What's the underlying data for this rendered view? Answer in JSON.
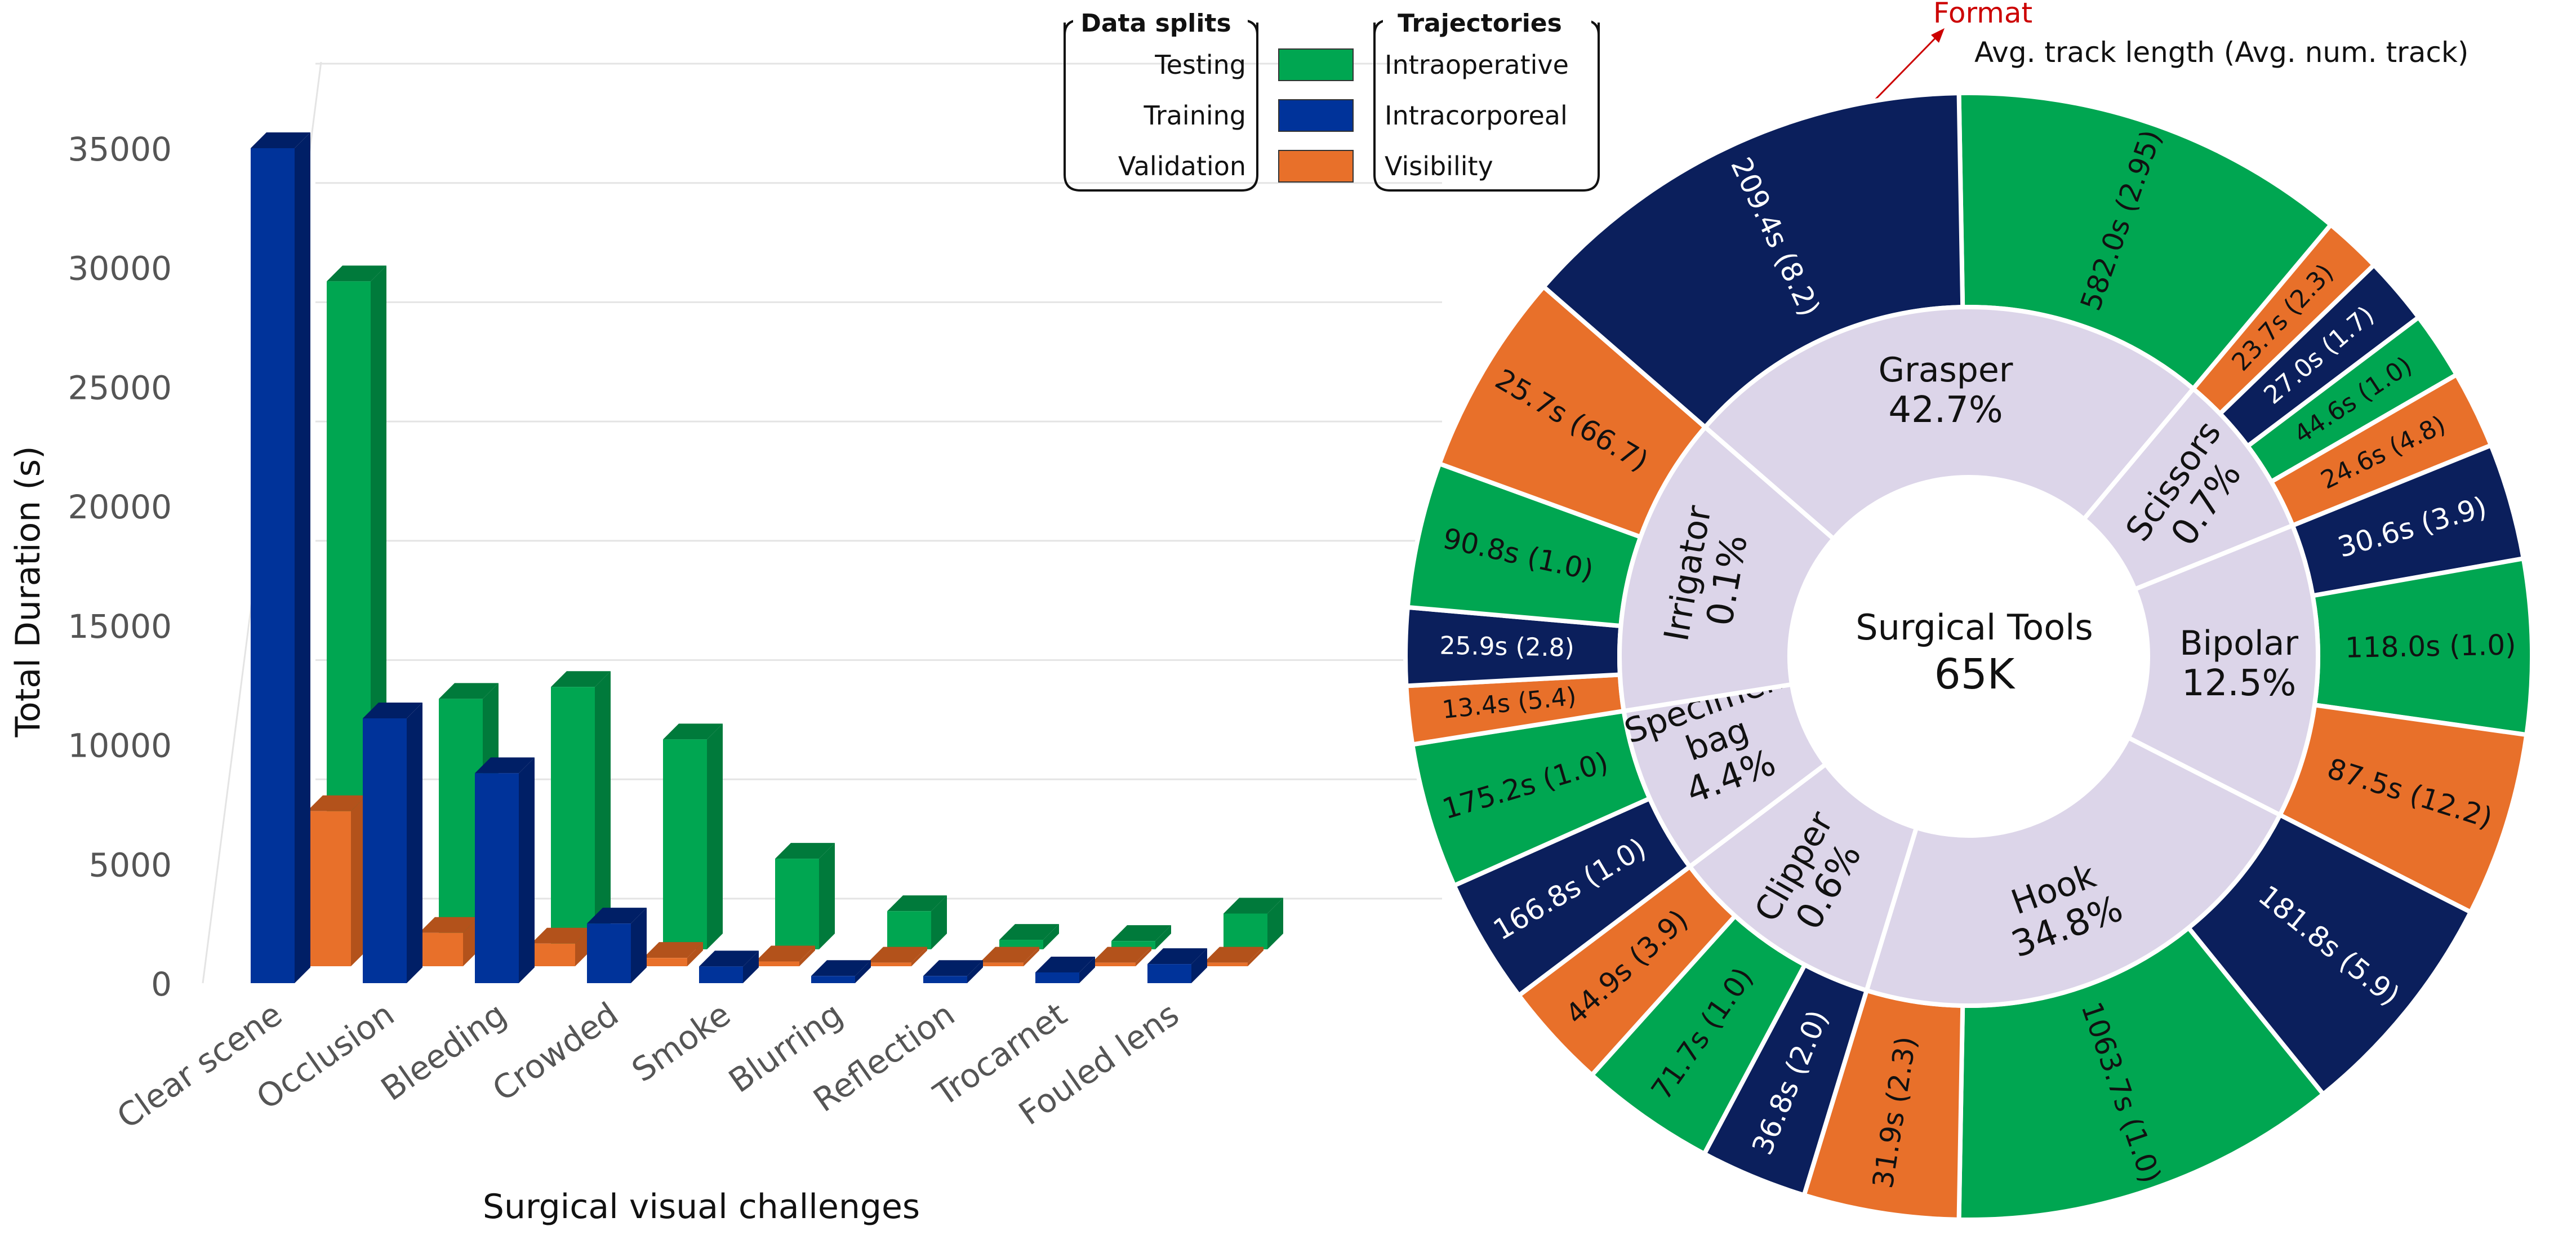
{
  "colors": {
    "testing": "#00a651",
    "testing_side": "#007a3b",
    "training": "#00339a",
    "training_side": "#001f66",
    "validation": "#e8702a",
    "validation_side": "#b3521b",
    "inner_ring": "#dcd5e9",
    "outer_train": "#0b1f5c",
    "annot": "#cc0000",
    "grid": "#e4e4e4"
  },
  "legend": {
    "data_splits_title": "Data splits",
    "trajectories_title": "Trajectories",
    "rows": [
      {
        "split": "Testing",
        "trajectory": "Intraoperative",
        "color": "#00a651"
      },
      {
        "split": "Training",
        "trajectory": "Intracorporeal",
        "color": "#00339a"
      },
      {
        "split": "Validation",
        "trajectory": "Visibility",
        "color": "#e8702a"
      }
    ]
  },
  "annotation": {
    "format_label": "Format",
    "format_text": "Avg. track length (Avg. num. track)"
  },
  "chart_data": [
    {
      "type": "bar",
      "title": "",
      "xlabel": "Surgical visual challenges",
      "ylabel": "Total Duration (s)",
      "ylim": [
        0,
        35000
      ],
      "yticks": [
        "0",
        "5000",
        "10000",
        "15000",
        "20000",
        "25000",
        "30000",
        "35000"
      ],
      "grid": true,
      "categories": [
        "Clear scene",
        "Occlusion",
        "Bleeding",
        "Crowded",
        "Smoke",
        "Blurring",
        "Reflection",
        "Trocarnet",
        "Fouled lens"
      ],
      "series": [
        {
          "name": "Training",
          "values": [
            35000,
            11100,
            8800,
            2500,
            700,
            300,
            300,
            450,
            800
          ]
        },
        {
          "name": "Validation",
          "values": [
            6500,
            1400,
            950,
            350,
            200,
            150,
            150,
            150,
            150
          ]
        },
        {
          "name": "Testing",
          "values": [
            28000,
            10500,
            11000,
            8800,
            3800,
            1600,
            400,
            350,
            1500
          ]
        }
      ]
    },
    {
      "type": "pie",
      "center_label": "Surgical Tools",
      "center_value": "65K",
      "tools": [
        {
          "name": "Grasper",
          "percent": "42.7%"
        },
        {
          "name": "Scissors",
          "percent": "0.7%"
        },
        {
          "name": "Bipolar",
          "percent": "12.5%"
        },
        {
          "name": "Hook",
          "percent": "34.8%"
        },
        {
          "name": "Clipper",
          "percent": "0.6%"
        },
        {
          "name": "Specimen bag",
          "percent": "4.4%"
        },
        {
          "name": "Irrigator",
          "percent": "0.1%"
        }
      ],
      "outer": [
        {
          "label": "582.0s (2.95)",
          "split": "Testing"
        },
        {
          "label": "23.7s (2.3)",
          "split": "Validation"
        },
        {
          "label": "27.0s (1.7)",
          "split": "Training"
        },
        {
          "label": "44.6s (1.0)",
          "split": "Testing"
        },
        {
          "label": "24.6s (4.8)",
          "split": "Validation"
        },
        {
          "label": "30.6s (3.9)",
          "split": "Training"
        },
        {
          "label": "118.0s (1.0)",
          "split": "Testing"
        },
        {
          "label": "87.5s (12.2)",
          "split": "Validation"
        },
        {
          "label": "181.8s (5.9)",
          "split": "Training"
        },
        {
          "label": "1063.7s (1.0)",
          "split": "Testing"
        },
        {
          "label": "31.9s (2.3)",
          "split": "Validation"
        },
        {
          "label": "36.8s (2.0)",
          "split": "Training"
        },
        {
          "label": "71.7s (1.0)",
          "split": "Testing"
        },
        {
          "label": "44.9s (3.9)",
          "split": "Validation"
        },
        {
          "label": "166.8s (1.0)",
          "split": "Training"
        },
        {
          "label": "175.2s (1.0)",
          "split": "Testing"
        },
        {
          "label": "13.4s (5.4)",
          "split": "Validation"
        },
        {
          "label": "25.9s (2.8)",
          "split": "Training"
        },
        {
          "label": "90.8s (1.0)",
          "split": "Testing"
        },
        {
          "label": "25.7s (66.7)",
          "split": "Validation"
        },
        {
          "label": "209.4s (8.2)",
          "split": "Training"
        }
      ]
    }
  ]
}
